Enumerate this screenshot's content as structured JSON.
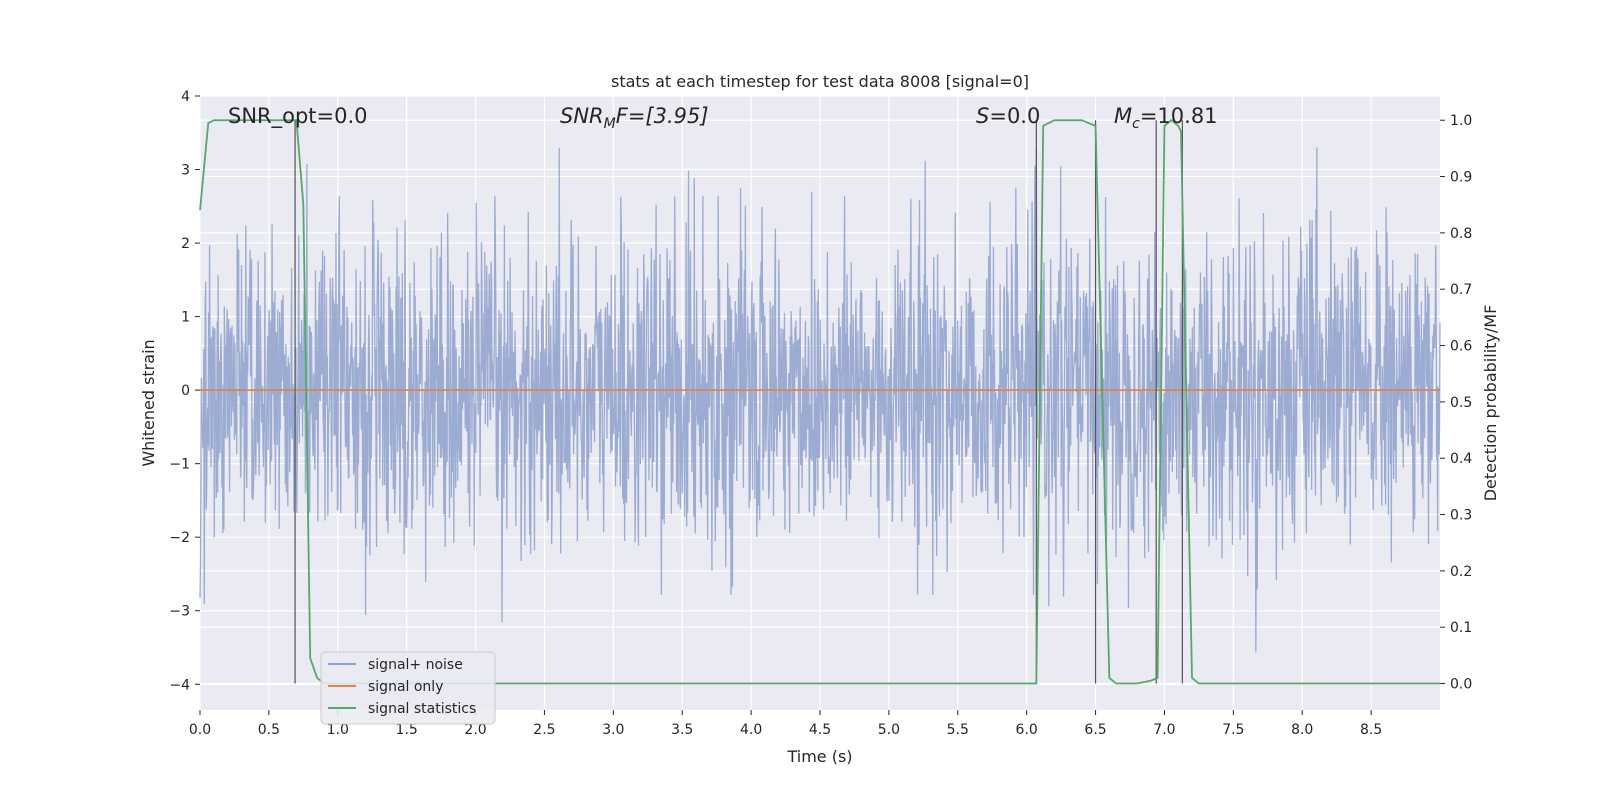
{
  "chart_data": {
    "type": "line",
    "title": "stats at each timestep for test data 8008 [signal=0]",
    "xlabel": "Time (s)",
    "ylabel_left": "Whitened strain",
    "ylabel_right": "Detection probability/MF",
    "xlim": [
      0.0,
      9.0
    ],
    "ylim_left": [
      -4.35,
      4.0
    ],
    "ylim_right": [
      -0.047,
      1.043
    ],
    "x_ticks": [
      "0.0",
      "0.5",
      "1.0",
      "1.5",
      "2.0",
      "2.5",
      "3.0",
      "3.5",
      "4.0",
      "4.5",
      "5.0",
      "5.5",
      "6.0",
      "6.5",
      "7.0",
      "7.5",
      "8.0",
      "8.5"
    ],
    "y_ticks_left": [
      "4",
      "3",
      "2",
      "1",
      "0",
      "−1",
      "−2",
      "−3",
      "−4"
    ],
    "y_ticks_right": [
      "1.0",
      "0.9",
      "0.8",
      "0.7",
      "0.6",
      "0.5",
      "0.4",
      "0.3",
      "0.2",
      "0.1",
      "0.0"
    ],
    "grid": true,
    "legend_position": "bottom-left",
    "annotations": {
      "snr_opt": "SNR_opt=0.0",
      "snr_mf_sym": "SNR",
      "snr_mf_sub": "M",
      "snr_mf_rest": "F=[3.95]",
      "s_sym": "S",
      "s_rest": "=0.0",
      "mc_sym": "M",
      "mc_sub": "c",
      "mc_rest": "=10.81"
    },
    "series": [
      {
        "name": "signal+ noise",
        "color": "#8da0cb",
        "description_amplitude": "noise roughly between -3.9 and 3.3 across full time range"
      },
      {
        "name": "signal only",
        "color": "#dd8452",
        "values_constant": 0.0
      },
      {
        "name": "signal statistics",
        "color": "#55a868",
        "x": [
          0.0,
          0.06,
          0.1,
          0.15,
          0.2,
          0.3,
          0.4,
          0.5,
          0.6,
          0.7,
          0.75,
          0.8,
          0.85,
          0.9,
          1.0,
          2.0,
          3.0,
          4.0,
          5.0,
          6.0,
          6.07,
          6.12,
          6.2,
          6.3,
          6.4,
          6.5,
          6.6,
          6.65,
          6.7,
          6.8,
          6.9,
          6.95,
          7.0,
          7.05,
          7.1,
          7.12,
          7.2,
          7.25,
          7.3,
          8.0,
          9.0
        ],
        "values": [
          0.84,
          0.995,
          1.0,
          1.0,
          1.0,
          1.0,
          1.0,
          1.0,
          1.0,
          1.0,
          0.85,
          0.045,
          0.01,
          0.0,
          0.0,
          0.0,
          0.0,
          0.0,
          0.0,
          0.0,
          0.0,
          0.99,
          1.0,
          1.0,
          1.0,
          0.99,
          0.01,
          0.0,
          0.0,
          0.0,
          0.005,
          0.01,
          0.99,
          1.0,
          0.99,
          0.98,
          0.01,
          0.0,
          0.0,
          0.0,
          0.0
        ]
      }
    ],
    "vertical_markers_x": [
      0.69,
      6.07,
      6.5,
      6.94,
      7.13
    ]
  }
}
